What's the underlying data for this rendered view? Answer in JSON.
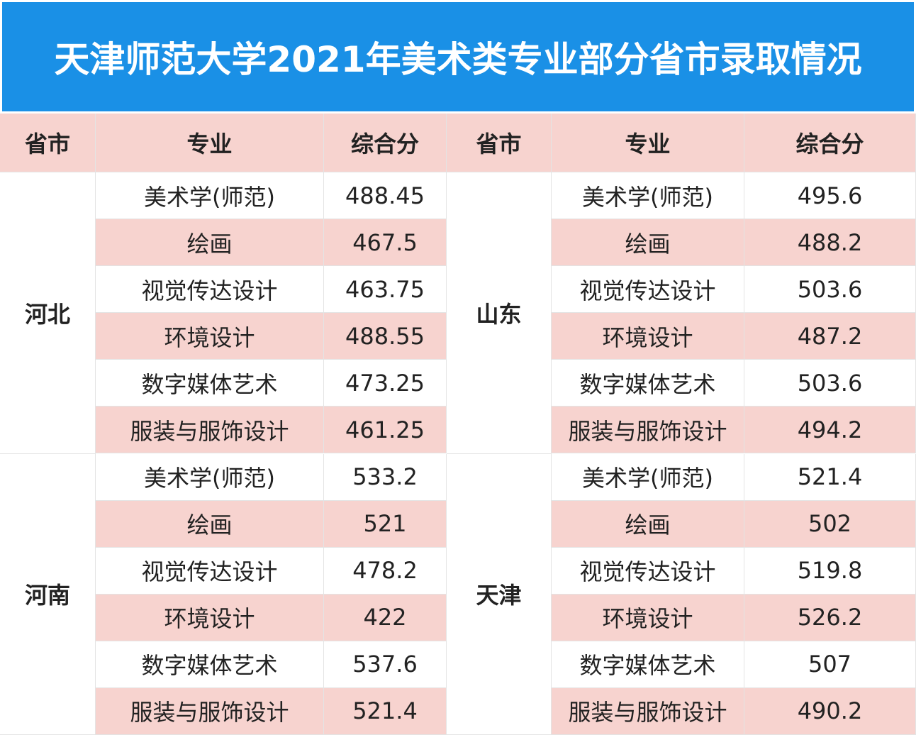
{
  "title": "天津师范大学2021年美术类专业部分省市录取情况",
  "headers": [
    "省市",
    "专业",
    "综合分",
    "省市",
    "专业",
    "综合分"
  ],
  "groups": [
    {
      "province": "河北",
      "rows": [
        [
          "美术学(师范)",
          488.45
        ],
        [
          "绘画",
          467.5
        ],
        [
          "视觉传达设计",
          463.75
        ],
        [
          "环境设计",
          488.55
        ],
        [
          "数字媒体艺术",
          473.25
        ],
        [
          "服装与服饰设计",
          461.25
        ]
      ]
    },
    {
      "province": "山东",
      "rows": [
        [
          "美术学(师范)",
          495.6
        ],
        [
          "绘画",
          488.2
        ],
        [
          "视觉传达设计",
          503.6
        ],
        [
          "环境设计",
          487.2
        ],
        [
          "数字媒体艺术",
          503.6
        ],
        [
          "服装与服饰设计",
          494.2
        ]
      ]
    },
    {
      "province": "河南",
      "rows": [
        [
          "美术学(师范)",
          533.2
        ],
        [
          "绘画",
          521
        ],
        [
          "视觉传达设计",
          478.2
        ],
        [
          "环境设计",
          422
        ],
        [
          "数字媒体艺术",
          537.6
        ],
        [
          "服装与服饰设计",
          521.4
        ]
      ]
    },
    {
      "province": "天津",
      "rows": [
        [
          "美术学(师范)",
          521.4
        ],
        [
          "绘画",
          502
        ],
        [
          "视觉传达设计",
          519.8
        ],
        [
          "环境设计",
          526.2
        ],
        [
          "数字媒体艺术",
          507
        ],
        [
          "服装与服饰设计",
          490.2
        ]
      ]
    }
  ]
}
